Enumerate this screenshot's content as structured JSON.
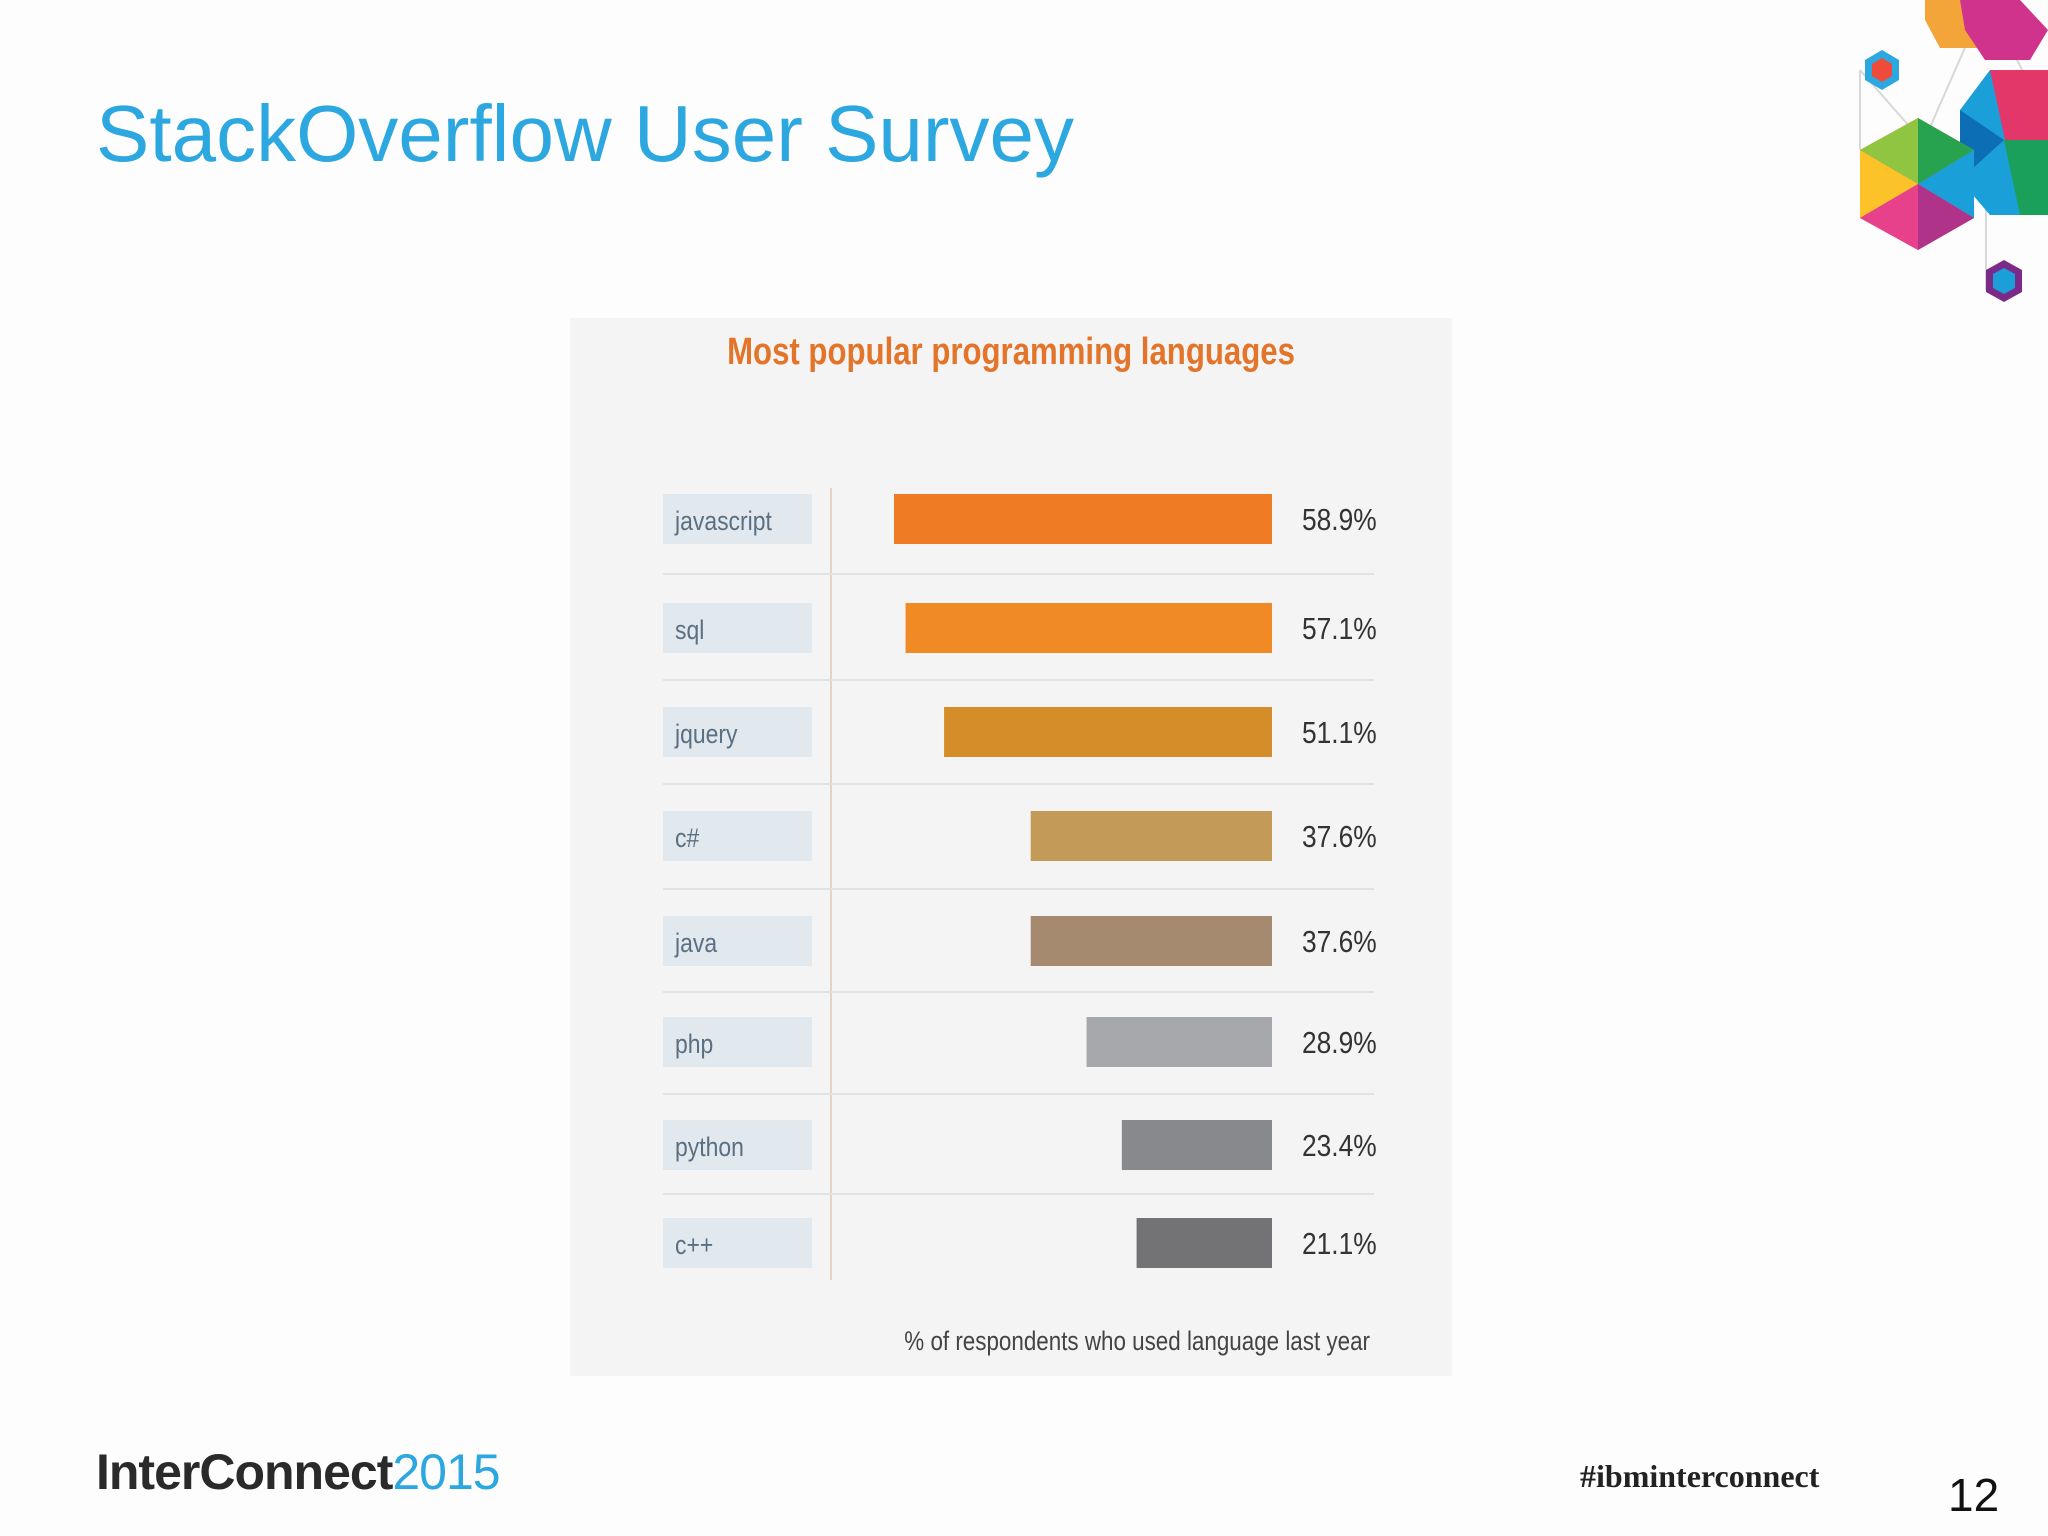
{
  "slide": {
    "title": "StackOverflow User Survey",
    "brand_name": "InterConnect",
    "brand_year": "2015",
    "hashtag": "#ibminterconnect",
    "page_number": "12"
  },
  "colors": {
    "title": "#2ca7df",
    "chart_title": "#e3752b",
    "label_box": "#e1e8ee",
    "label_text": "#5a6f82"
  },
  "chart_data": {
    "type": "bar",
    "orientation": "horizontal",
    "title": "Most popular programming languages",
    "xlabel": "% of respondents who used language last year",
    "ylabel": "",
    "categories": [
      "javascript",
      "sql",
      "jquery",
      "c#",
      "java",
      "php",
      "python",
      "c++"
    ],
    "values": [
      58.9,
      57.1,
      51.1,
      37.6,
      37.6,
      28.9,
      23.4,
      21.1
    ],
    "value_labels": [
      "58.9%",
      "57.1%",
      "51.1%",
      "37.6%",
      "37.6%",
      "28.9%",
      "23.4%",
      "21.1%"
    ],
    "bar_colors": [
      "#ef7c24",
      "#f08a25",
      "#d58d2a",
      "#c39a57",
      "#a68a70",
      "#a7a8ab",
      "#88898c",
      "#737375"
    ],
    "grid": false,
    "legend": "none"
  }
}
